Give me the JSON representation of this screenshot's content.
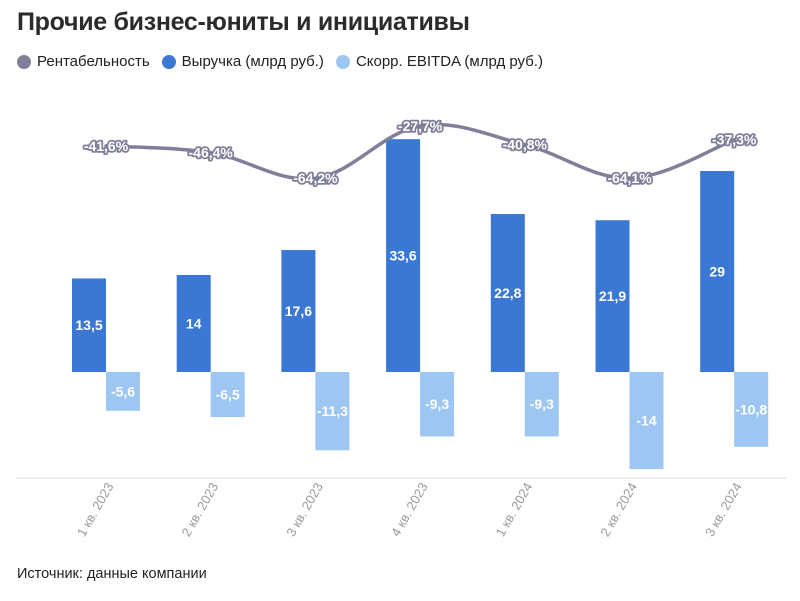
{
  "title": "Прочие бизнес-юниты и инициативы",
  "source": "Источник: данные компании",
  "legend": [
    {
      "label": "Рентабельность",
      "color": "#807f9a"
    },
    {
      "label": "Выручка (млрд руб.)",
      "color": "#3b78d4"
    },
    {
      "label": "Скорр. EBITDA (млрд руб.)",
      "color": "#9ec6f3"
    }
  ],
  "chart_data": {
    "type": "bar",
    "categories": [
      "1 кв. 2023",
      "2 кв. 2023",
      "3 кв. 2023",
      "4 кв. 2023",
      "1 кв. 2024",
      "2 кв. 2024",
      "3 кв. 2024"
    ],
    "series": [
      {
        "name": "Выручка (млрд руб.)",
        "type": "bar",
        "color": "#3b78d4",
        "values": [
          13.5,
          14,
          17.6,
          33.6,
          22.8,
          21.9,
          29
        ],
        "labels": [
          "13,5",
          "14",
          "17,6",
          "33,6",
          "22,8",
          "21,9",
          "29"
        ]
      },
      {
        "name": "Скорр. EBITDA (млрд руб.)",
        "type": "bar",
        "color": "#9ec6f3",
        "values": [
          -5.6,
          -6.5,
          -11.3,
          -9.3,
          -9.3,
          -14,
          -10.8
        ],
        "labels": [
          "-5,6",
          "-6,5",
          "-11,3",
          "-9,3",
          "-9,3",
          "-14",
          "-10,8"
        ]
      },
      {
        "name": "Рентабельность",
        "type": "line",
        "color": "#807f9a",
        "values": [
          -41.6,
          -46.4,
          -64.2,
          -27.7,
          -40.8,
          -64.1,
          -37.3
        ],
        "labels": [
          "-41,6%",
          "-46,4%",
          "-64,2%",
          "-27,7%",
          "-40,8%",
          "-64,1%",
          "-37,3%"
        ]
      }
    ],
    "grid": false,
    "legend_position": "top-left"
  }
}
